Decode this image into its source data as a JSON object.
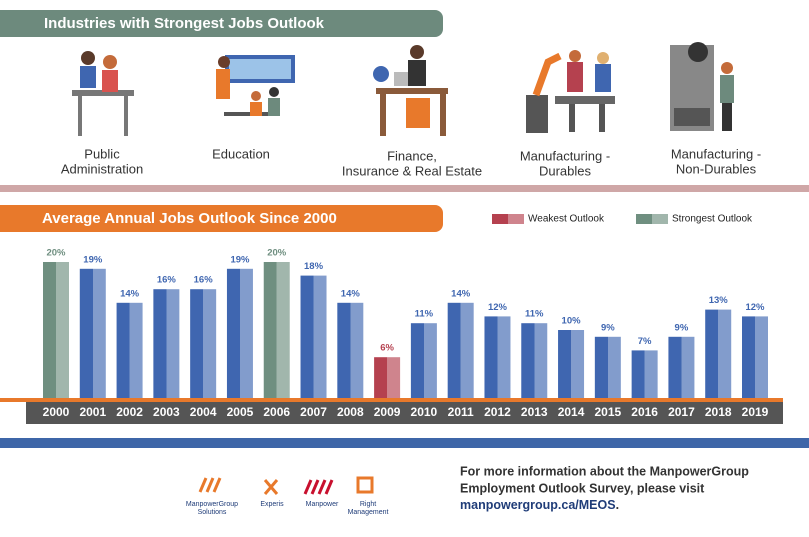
{
  "industries": {
    "title": "Industries with Strongest Jobs Outlook",
    "items": [
      [
        "Public",
        "Administration"
      ],
      [
        "Education"
      ],
      [
        "Finance,",
        "Insurance & Real Estate"
      ],
      [
        "Manufacturing -",
        "Durables"
      ],
      [
        "Manufacturing -",
        "Non-Durables"
      ]
    ]
  },
  "chart_data": {
    "type": "bar",
    "title": "Average Annual Jobs Outlook Since 2000",
    "categories": [
      "2000",
      "2001",
      "2002",
      "2003",
      "2004",
      "2005",
      "2006",
      "2007",
      "2008",
      "2009",
      "2010",
      "2011",
      "2012",
      "2013",
      "2014",
      "2015",
      "2016",
      "2017",
      "2018",
      "2019"
    ],
    "values": [
      20,
      19,
      14,
      16,
      16,
      19,
      20,
      18,
      14,
      6,
      11,
      14,
      12,
      11,
      10,
      9,
      7,
      9,
      13,
      12
    ],
    "value_labels": [
      "20%",
      "19%",
      "14%",
      "16%",
      "16%",
      "19%",
      "20%",
      "18%",
      "14%",
      "6%",
      "11%",
      "14%",
      "12%",
      "11%",
      "10%",
      "9%",
      "7%",
      "9%",
      "13%",
      "12%"
    ],
    "bar_colors": [
      "#6f8f80",
      "#3f66b0",
      "#3f66b0",
      "#3f66b0",
      "#3f66b0",
      "#3f66b0",
      "#6f8f80",
      "#3f66b0",
      "#3f66b0",
      "#b5414f",
      "#3f66b0",
      "#3f66b0",
      "#3f66b0",
      "#3f66b0",
      "#3f66b0",
      "#3f66b0",
      "#3f66b0",
      "#3f66b0",
      "#3f66b0",
      "#3f66b0"
    ],
    "legend": [
      {
        "name": "Weakest Outlook",
        "color": "#b5414f"
      },
      {
        "name": "Strongest Outlook",
        "color": "#6f8f80"
      }
    ],
    "ylim": [
      0,
      20
    ]
  },
  "footer": {
    "lines": [
      "For more information about the ManpowerGroup",
      "Employment Outlook Survey, please visit"
    ],
    "link": "manpowergroup.ca/MEOS",
    "end": ".",
    "logos": [
      [
        "ManpowerGroup",
        "Solutions"
      ],
      [
        "Experis"
      ],
      [
        "Manpower"
      ],
      [
        "Right",
        "Management"
      ]
    ]
  }
}
